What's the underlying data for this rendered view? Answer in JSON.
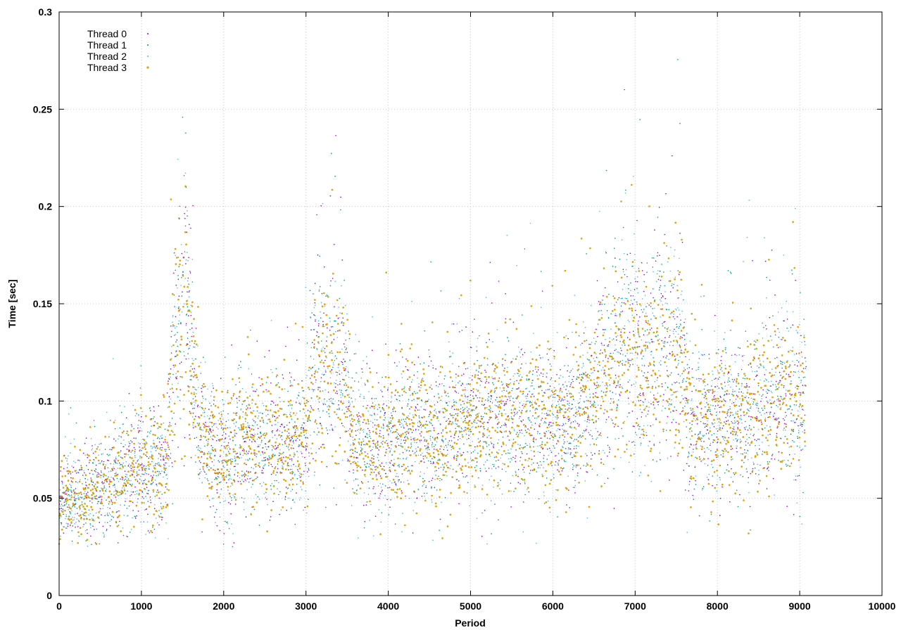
{
  "chart_data": {
    "type": "scatter",
    "title": "",
    "xlabel": "Period",
    "ylabel": "Time [sec]",
    "xlim": [
      0,
      10000
    ],
    "ylim": [
      0,
      0.3
    ],
    "xticks": [
      "0",
      "1000",
      "2000",
      "3000",
      "4000",
      "5000",
      "6000",
      "7000",
      "8000",
      "9000",
      "10000"
    ],
    "yticks": [
      "0",
      "0.05",
      "0.1",
      "0.15",
      "0.2",
      "0.25",
      "0.3"
    ],
    "grid": true,
    "legend_position": "top-left",
    "series": [
      {
        "name": "Thread 0",
        "color": "#9400d3"
      },
      {
        "name": "Thread 1",
        "color": "#009e73"
      },
      {
        "name": "Thread 2",
        "color": "#56b4e9"
      },
      {
        "name": "Thread 3",
        "color": "#e69f00"
      }
    ],
    "period_range": [
      0,
      9080
    ],
    "trend": {
      "period": [
        0,
        300,
        600,
        1000,
        1300,
        1380,
        1500,
        1600,
        1700,
        1800,
        2000,
        2200,
        2500,
        2800,
        3000,
        3100,
        3300,
        3480,
        3550,
        3800,
        4000,
        4300,
        4600,
        5000,
        5400,
        5800,
        6200,
        6500,
        6700,
        6900,
        7100,
        7300,
        7580,
        7650,
        8000,
        8400,
        8800,
        9080
      ],
      "median_time": [
        0.048,
        0.052,
        0.058,
        0.064,
        0.066,
        0.12,
        0.16,
        0.13,
        0.085,
        0.075,
        0.07,
        0.08,
        0.078,
        0.076,
        0.078,
        0.115,
        0.118,
        0.112,
        0.08,
        0.078,
        0.077,
        0.085,
        0.082,
        0.09,
        0.092,
        0.09,
        0.088,
        0.1,
        0.125,
        0.13,
        0.12,
        0.125,
        0.12,
        0.09,
        0.088,
        0.095,
        0.1,
        0.105
      ]
    }
  }
}
